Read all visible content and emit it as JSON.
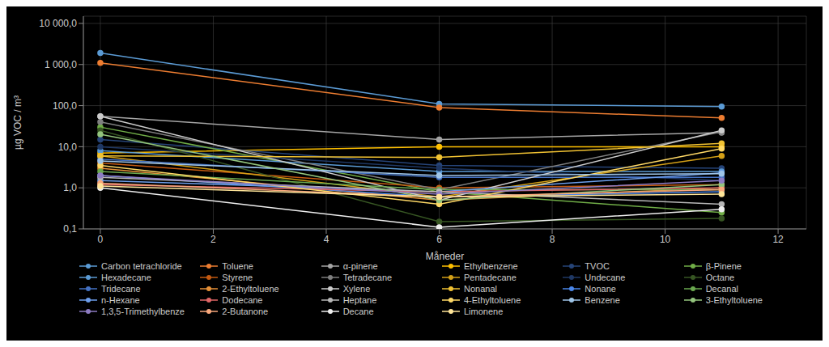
{
  "chart_data": {
    "type": "line",
    "xlabel": "Måneder",
    "ylabel": "µg VOC / m³",
    "x": [
      0,
      6,
      11
    ],
    "xlim": [
      -0.3,
      12.5
    ],
    "xticks": [
      0,
      2,
      4,
      6,
      8,
      10,
      12
    ],
    "ylim": [
      0.1,
      15000
    ],
    "yticks": [
      {
        "value": 0.1,
        "label": "0,1"
      },
      {
        "value": 1,
        "label": "1,0"
      },
      {
        "value": 10,
        "label": "10,0"
      },
      {
        "value": 100,
        "label": "100,0"
      },
      {
        "value": 1000,
        "label": "1 000,0"
      },
      {
        "value": 10000,
        "label": "10 000,0"
      }
    ],
    "log": "y",
    "grid": true,
    "legend": "bottom",
    "marker": "circle",
    "series": [
      {
        "name": "Carbon tetrachloride",
        "color": "#5b9bd5",
        "values": [
          1900,
          110,
          95
        ]
      },
      {
        "name": "Toluene",
        "color": "#ed7d31",
        "values": [
          1100,
          90,
          50
        ]
      },
      {
        "name": "α-pinene",
        "color": "#a5a5a5",
        "values": [
          55,
          15,
          22
        ]
      },
      {
        "name": "Ethylbenzene",
        "color": "#ffc000",
        "values": [
          7,
          10,
          10
        ]
      },
      {
        "name": "TVOC",
        "color": "#264478",
        "values": [
          15,
          3.5,
          3.0
        ]
      },
      {
        "name": "β-Pinene",
        "color": "#70ad47",
        "values": [
          30,
          0.8,
          0.25
        ]
      },
      {
        "name": "Hexadecane",
        "color": "#5b9bd5",
        "values": [
          8,
          2.5,
          2.5
        ]
      },
      {
        "name": "Styrene",
        "color": "#c55a11",
        "values": [
          4,
          1.0,
          1.2
        ]
      },
      {
        "name": "Tetradecane",
        "color": "#7f7f7f",
        "values": [
          40,
          0.9,
          23
        ]
      },
      {
        "name": "Pentadecane",
        "color": "#d4a017",
        "values": [
          6,
          0.6,
          6
        ]
      },
      {
        "name": "Undecane",
        "color": "#1f3864",
        "values": [
          10,
          3.0,
          1.5
        ]
      },
      {
        "name": "Octane",
        "color": "#375623",
        "values": [
          25,
          0.15,
          0.18
        ]
      },
      {
        "name": "Tridecane",
        "color": "#4472c4",
        "values": [
          5,
          1.8,
          1.8
        ]
      },
      {
        "name": "2-Ethyltoluene",
        "color": "#e69138",
        "values": [
          3,
          0.5,
          1.0
        ]
      },
      {
        "name": "Xylene",
        "color": "#cccccc",
        "values": [
          55,
          0.5,
          25
        ]
      },
      {
        "name": "Nonanal",
        "color": "#f1c232",
        "values": [
          6,
          5.5,
          12
        ]
      },
      {
        "name": "Nonane",
        "color": "#4a86e8",
        "values": [
          2,
          0.6,
          0.8
        ]
      },
      {
        "name": "Decanal",
        "color": "#6aa84f",
        "values": [
          2.5,
          0.9,
          0.9
        ]
      },
      {
        "name": "n-Hexane",
        "color": "#6d9eeb",
        "values": [
          1.5,
          0.8,
          2.3
        ]
      },
      {
        "name": "Dodecane",
        "color": "#e06666",
        "values": [
          1.2,
          0.8,
          1.0
        ]
      },
      {
        "name": "Heptane",
        "color": "#b7b7b7",
        "values": [
          1.8,
          0.8,
          0.4
        ]
      },
      {
        "name": "4-Ethyltoluene",
        "color": "#ffd966",
        "values": [
          3.5,
          0.4,
          9
        ]
      },
      {
        "name": "Benzene",
        "color": "#9fc5e8",
        "values": [
          4.5,
          2.0,
          2.2
        ]
      },
      {
        "name": "3-Ethyltoluene",
        "color": "#93c47d",
        "values": [
          20,
          0.5,
          1.2
        ]
      },
      {
        "name": "1,3,5-Trimethylbenze",
        "color": "#8e7cc3",
        "values": [
          2.0,
          0.7,
          1.5
        ]
      },
      {
        "name": "2-Butanone",
        "color": "#f9a87c",
        "values": [
          1.3,
          0.6,
          0.9
        ]
      },
      {
        "name": "Decane",
        "color": "#eeeeee",
        "values": [
          1.0,
          0.11,
          0.3
        ]
      },
      {
        "name": "Limonene",
        "color": "#ffe599",
        "values": [
          1.1,
          0.6,
          0.7
        ]
      }
    ]
  }
}
